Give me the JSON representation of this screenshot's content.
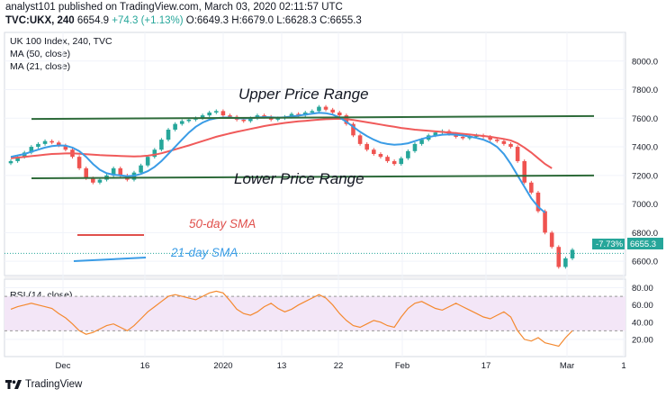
{
  "header": {
    "line1": "analyst101 published on TradingView.com, March 03, 2020 02:11:57 UTC",
    "symbol": "TVC:UKX, 240",
    "last": "6654.9",
    "change": "+74.3 (+1.13%)",
    "ohlc": {
      "o": "O:6649.3",
      "h": "H:6679.0",
      "l": "L:6628.3",
      "c": "C:6655.3"
    }
  },
  "legend": {
    "title": "UK 100 Index, 240, TVC",
    "ma50": "MA (50, close)",
    "ma21": "MA (21, close)",
    "rsi": "RSI (14, close)"
  },
  "annotations": {
    "upper": "Upper Price Range",
    "lower": "Lower Price Range",
    "sma50": "50-day SMA",
    "sma21": "21-day SMA"
  },
  "price_axis": {
    "ticks": [
      "8000.0",
      "7800.0",
      "7600.0",
      "7400.0",
      "7200.0",
      "7000.0",
      "6800.0",
      "6600.0"
    ],
    "current": "6655.3",
    "current_change": "-7.73%"
  },
  "rsi_axis": {
    "ticks": [
      "80.00",
      "60.00",
      "40.00",
      "20.00"
    ]
  },
  "time_axis": {
    "ticks": [
      "Dec",
      "16",
      "2020",
      "13",
      "22",
      "Feb",
      "17",
      "Mar",
      "1"
    ]
  },
  "brand": "TradingView",
  "colors": {
    "bull": "#26a69a",
    "bear": "#ef5350",
    "ma50": "#f05a5a",
    "ma21": "#3a9ce6",
    "trendline": "#2e6b3a",
    "rsi_line": "#f4892f",
    "rsi_band": "#f3e6f7",
    "annotation_red": "#e0504c",
    "annotation_blue": "#3a9ce6"
  },
  "chart_data": {
    "type": "candlestick",
    "symbol": "TVC:UKX",
    "interval": "240",
    "ylim": [
      6500,
      8200
    ],
    "rsi_ylim": [
      0,
      90
    ],
    "rsi_levels": [
      70,
      30
    ],
    "trendlines": [
      {
        "name": "Upper Price Range",
        "start": 7595,
        "end": 7615
      },
      {
        "name": "Lower Price Range",
        "start": 7180,
        "end": 7200
      }
    ],
    "candles": [
      7300,
      7330,
      7360,
      7400,
      7420,
      7440,
      7430,
      7410,
      7380,
      7330,
      7250,
      7180,
      7150,
      7170,
      7200,
      7250,
      7200,
      7170,
      7220,
      7270,
      7330,
      7380,
      7450,
      7520,
      7560,
      7580,
      7590,
      7600,
      7620,
      7640,
      7650,
      7620,
      7610,
      7590,
      7580,
      7600,
      7620,
      7610,
      7590,
      7600,
      7610,
      7630,
      7620,
      7640,
      7650,
      7680,
      7660,
      7640,
      7620,
      7560,
      7480,
      7420,
      7380,
      7350,
      7330,
      7300,
      7280,
      7320,
      7370,
      7420,
      7450,
      7480,
      7500,
      7510,
      7490,
      7470,
      7460,
      7470,
      7480,
      7470,
      7450,
      7440,
      7420,
      7400,
      7300,
      7150,
      7080,
      6950,
      6800,
      6700,
      6560,
      6620,
      6680
    ],
    "ma50": [
      7320,
      7325,
      7330,
      7335,
      7340,
      7345,
      7350,
      7352,
      7354,
      7355,
      7352,
      7348,
      7345,
      7342,
      7340,
      7338,
      7336,
      7334,
      7333,
      7334,
      7338,
      7345,
      7355,
      7368,
      7382,
      7396,
      7410,
      7425,
      7440,
      7455,
      7470,
      7482,
      7494,
      7505,
      7515,
      7525,
      7535,
      7545,
      7553,
      7560,
      7567,
      7573,
      7578,
      7582,
      7586,
      7590,
      7593,
      7595,
      7596,
      7594,
      7588,
      7580,
      7572,
      7564,
      7556,
      7548,
      7540,
      7532,
      7526,
      7520,
      7516,
      7512,
      7508,
      7504,
      7500,
      7496,
      7491,
      7486,
      7481,
      7476,
      7470,
      7463,
      7455,
      7445,
      7425,
      7395,
      7360,
      7320,
      7280,
      7250,
      null,
      null,
      null
    ],
    "ma21": [
      7330,
      7340,
      7350,
      7365,
      7380,
      7395,
      7405,
      7410,
      7408,
      7395,
      7370,
      7330,
      7280,
      7240,
      7215,
      7205,
      7200,
      7195,
      7198,
      7210,
      7230,
      7260,
      7300,
      7350,
      7400,
      7450,
      7500,
      7540,
      7570,
      7590,
      7600,
      7605,
      7605,
      7600,
      7598,
      7600,
      7605,
      7608,
      7606,
      7604,
      7606,
      7612,
      7618,
      7625,
      7632,
      7638,
      7635,
      7625,
      7605,
      7575,
      7540,
      7505,
      7475,
      7450,
      7430,
      7420,
      7415,
      7418,
      7425,
      7440,
      7455,
      7468,
      7478,
      7485,
      7487,
      7485,
      7480,
      7472,
      7462,
      7450,
      7430,
      7400,
      7350,
      7280,
      7200,
      7120,
      7040,
      6980,
      6940,
      null,
      null,
      null,
      null
    ],
    "rsi": [
      55,
      58,
      60,
      62,
      60,
      58,
      56,
      50,
      45,
      38,
      30,
      26,
      28,
      32,
      36,
      38,
      34,
      30,
      36,
      44,
      52,
      58,
      64,
      70,
      72,
      70,
      68,
      66,
      70,
      74,
      76,
      74,
      65,
      55,
      50,
      48,
      52,
      58,
      62,
      56,
      52,
      55,
      60,
      64,
      68,
      72,
      68,
      60,
      50,
      42,
      36,
      34,
      38,
      42,
      40,
      36,
      34,
      46,
      56,
      62,
      64,
      60,
      56,
      54,
      58,
      62,
      58,
      54,
      50,
      46,
      44,
      48,
      52,
      46,
      30,
      20,
      18,
      22,
      16,
      14,
      12,
      22,
      30
    ]
  }
}
